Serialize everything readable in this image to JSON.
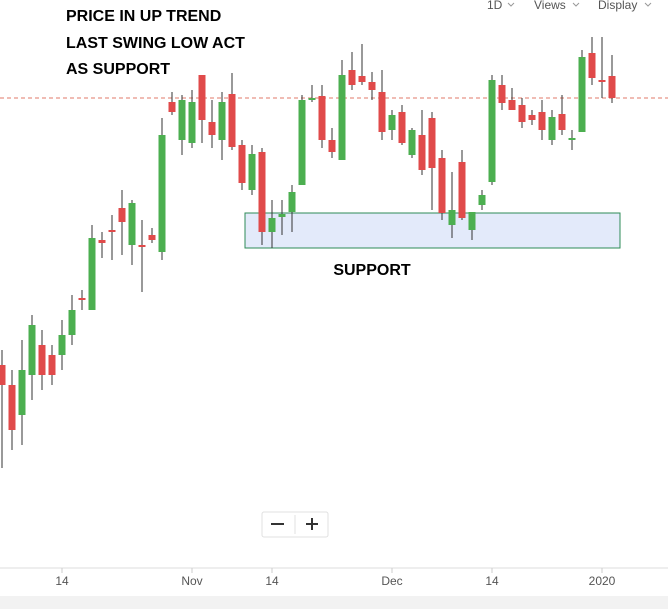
{
  "chart_data": {
    "type": "candlestick",
    "annotations": [
      "PRICE IN UP TREND",
      "LAST SWING LOW ACT",
      "AS SUPPORT"
    ],
    "zone_label": "SUPPORT",
    "categories": [
      null,
      null,
      null,
      null,
      null,
      null,
      "14",
      null,
      null,
      null,
      null,
      null,
      null,
      null,
      null,
      null,
      null,
      null,
      null,
      "Nov",
      null,
      null,
      null,
      null,
      null,
      null,
      null,
      "14",
      null,
      null,
      null,
      null,
      null,
      null,
      null,
      null,
      null,
      null,
      null,
      "Dec",
      null,
      null,
      null,
      null,
      null,
      null,
      null,
      null,
      null,
      "14",
      null,
      null,
      null,
      null,
      null,
      null,
      null,
      null,
      null,
      null,
      "2020",
      null
    ],
    "open": [
      203,
      183,
      153,
      193,
      223,
      213,
      213,
      233,
      270,
      258,
      328,
      338,
      360,
      323,
      323,
      333,
      316,
      466,
      428,
      425,
      493,
      446,
      428,
      474,
      423,
      378,
      416,
      336,
      351,
      356,
      383,
      468,
      472,
      428,
      408,
      498,
      492,
      486,
      476,
      438,
      456,
      413,
      433,
      450,
      410,
      343,
      406,
      338,
      363,
      386,
      483,
      468,
      463,
      453,
      456,
      428,
      454,
      428,
      436,
      515,
      488,
      492
    ],
    "high": [
      218,
      198,
      228,
      253,
      238,
      223,
      248,
      273,
      278,
      343,
      336,
      353,
      378,
      368,
      348,
      340,
      450,
      476,
      473,
      478,
      493,
      468,
      476,
      495,
      428,
      423,
      420,
      368,
      368,
      383,
      473,
      483,
      483,
      440,
      508,
      516,
      524,
      496,
      498,
      458,
      463,
      440,
      458,
      456,
      418,
      396,
      418,
      356,
      378,
      493,
      493,
      480,
      470,
      458,
      468,
      458,
      473,
      438,
      518,
      531,
      531,
      513
    ],
    "low": [
      100,
      118,
      123,
      168,
      178,
      183,
      198,
      223,
      258,
      258,
      310,
      308,
      313,
      303,
      276,
      325,
      308,
      453,
      413,
      420,
      425,
      420,
      408,
      418,
      378,
      373,
      323,
      320,
      333,
      336,
      383,
      466,
      420,
      410,
      408,
      478,
      483,
      468,
      428,
      428,
      423,
      410,
      393,
      358,
      348,
      330,
      348,
      328,
      358,
      383,
      458,
      458,
      440,
      443,
      428,
      423,
      433,
      418,
      436,
      483,
      470,
      465
    ],
    "close": [
      183,
      138,
      198,
      243,
      193,
      193,
      233,
      258,
      268,
      330,
      325,
      336,
      346,
      365,
      321,
      328,
      433,
      456,
      468,
      466,
      448,
      433,
      466,
      421,
      385,
      414,
      336,
      350,
      354,
      376,
      468,
      470,
      428,
      416,
      493,
      483,
      486,
      478,
      436,
      453,
      425,
      438,
      398,
      400,
      355,
      358,
      350,
      356,
      373,
      488,
      465,
      458,
      446,
      448,
      438,
      451,
      438,
      430,
      511,
      490,
      486,
      470
    ],
    "up_color": "#4caf50",
    "down_color": "#e04a4a",
    "ylim": [
      0,
      568
    ],
    "reference_line": 470,
    "reference_color": "#e07a6a",
    "support_zone": [
      320,
      355
    ],
    "zone_color": "#e3eafa",
    "zone_border": "#2e8b57"
  },
  "toolbar": {
    "interval": "1D",
    "views": "Views",
    "display": "Display"
  }
}
